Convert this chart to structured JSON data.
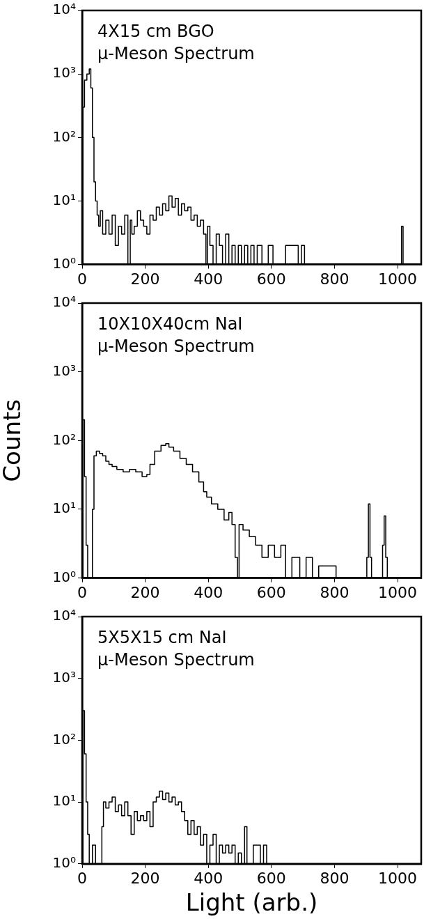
{
  "chart_data": [
    {
      "type": "step",
      "title": "4X15 cm BGO",
      "subtitle": "μ-Meson Spectrum",
      "color": "#000000",
      "log": "y",
      "xlim": [
        0,
        1075
      ],
      "xticks": [
        0,
        200,
        400,
        600,
        800,
        1000
      ],
      "ylim": [
        1,
        10000
      ],
      "yticks": [
        {
          "value": 1,
          "label": "10⁰"
        },
        {
          "value": 10,
          "label": "10¹"
        },
        {
          "value": 100,
          "label": "10²"
        },
        {
          "value": 1000,
          "label": "10³"
        },
        {
          "value": 10000,
          "label": "10⁴"
        }
      ],
      "x": [
        0,
        5,
        10,
        20,
        25,
        30,
        35,
        40,
        45,
        50,
        55,
        60,
        70,
        80,
        90,
        100,
        110,
        120,
        130,
        140,
        150,
        155,
        160,
        170,
        180,
        190,
        200,
        210,
        220,
        230,
        240,
        250,
        260,
        270,
        280,
        290,
        300,
        310,
        320,
        330,
        340,
        350,
        360,
        370,
        380,
        390,
        395,
        400,
        410,
        420,
        430,
        440,
        450,
        460,
        470,
        480,
        490,
        500,
        510,
        520,
        530,
        540,
        550,
        560,
        580,
        600,
        610,
        680,
        690,
        700,
        710,
        1010,
        1015,
        1020
      ],
      "values": [
        1,
        300,
        800,
        1000,
        1200,
        600,
        100,
        20,
        10,
        6,
        4,
        7,
        3,
        5,
        3,
        6,
        2,
        4,
        3,
        6,
        1,
        5,
        3,
        4,
        7,
        5,
        4,
        3,
        6,
        5,
        8,
        6,
        9,
        7,
        12,
        8,
        11,
        6,
        9,
        7,
        8,
        5,
        6,
        4,
        5,
        3,
        1,
        4,
        2,
        1,
        3,
        2,
        1,
        3,
        1,
        2,
        1,
        2,
        1,
        2,
        1,
        2,
        1,
        2,
        1,
        2,
        1,
        2,
        1,
        2,
        1,
        1,
        4,
        1
      ]
    },
    {
      "type": "step",
      "title": "10X10X40cm NaI",
      "subtitle": "μ-Meson Spectrum",
      "ylabel": "Counts",
      "color": "#000000",
      "log": "y",
      "xlim": [
        0,
        1075
      ],
      "xticks": [
        0,
        200,
        400,
        600,
        800,
        1000
      ],
      "ylim": [
        1,
        10000
      ],
      "yticks": [
        {
          "value": 1,
          "label": "10⁰"
        },
        {
          "value": 10,
          "label": "10¹"
        },
        {
          "value": 100,
          "label": "10²"
        },
        {
          "value": 1000,
          "label": "10³"
        },
        {
          "value": 10000,
          "label": "10⁴"
        }
      ],
      "x": [
        0,
        5,
        10,
        15,
        20,
        30,
        35,
        40,
        50,
        60,
        70,
        80,
        90,
        100,
        120,
        140,
        160,
        180,
        200,
        210,
        220,
        240,
        260,
        270,
        280,
        300,
        320,
        340,
        360,
        380,
        390,
        400,
        420,
        440,
        460,
        470,
        480,
        490,
        495,
        500,
        520,
        540,
        560,
        580,
        600,
        620,
        640,
        650,
        680,
        700,
        720,
        740,
        760,
        800,
        810,
        900,
        905,
        910,
        915,
        920,
        950,
        955,
        960,
        965,
        970
      ],
      "values": [
        1,
        200,
        30,
        3,
        1,
        1,
        10,
        60,
        70,
        65,
        60,
        50,
        45,
        42,
        38,
        35,
        38,
        35,
        30,
        32,
        45,
        70,
        85,
        90,
        80,
        70,
        55,
        45,
        35,
        25,
        18,
        15,
        12,
        10,
        7,
        9,
        6,
        2,
        1,
        6,
        5,
        4,
        3,
        2,
        3,
        2,
        3,
        1,
        2,
        1,
        2,
        1,
        1.5,
        1.5,
        1,
        1,
        2,
        12,
        2,
        1,
        1,
        3,
        8,
        2,
        1
      ]
    },
    {
      "type": "step",
      "title": "5X5X15 cm NaI",
      "subtitle": "μ-Meson Spectrum",
      "xlabel": "Light (arb.)",
      "color": "#000000",
      "log": "y",
      "xlim": [
        0,
        1075
      ],
      "xticks": [
        0,
        200,
        400,
        600,
        800,
        1000
      ],
      "ylim": [
        1,
        10000
      ],
      "yticks": [
        {
          "value": 1,
          "label": "10⁰"
        },
        {
          "value": 10,
          "label": "10¹"
        },
        {
          "value": 100,
          "label": "10²"
        },
        {
          "value": 1000,
          "label": "10³"
        },
        {
          "value": 10000,
          "label": "10⁴"
        }
      ],
      "x": [
        0,
        5,
        10,
        15,
        20,
        25,
        40,
        45,
        60,
        65,
        70,
        80,
        90,
        100,
        110,
        120,
        130,
        140,
        150,
        160,
        170,
        180,
        190,
        200,
        210,
        220,
        230,
        240,
        250,
        260,
        270,
        280,
        290,
        300,
        310,
        320,
        330,
        340,
        350,
        360,
        370,
        380,
        390,
        400,
        410,
        420,
        430,
        440,
        450,
        460,
        470,
        480,
        490,
        500,
        510,
        520,
        525,
        560,
        570,
        580,
        590,
        600
      ],
      "values": [
        1,
        300,
        60,
        10,
        3,
        1,
        2,
        1,
        1,
        4,
        10,
        8,
        10,
        12,
        7,
        9,
        6,
        10,
        6,
        3,
        7,
        5,
        6,
        5,
        7,
        4,
        10,
        12,
        15,
        11,
        14,
        10,
        12,
        9,
        10,
        7,
        5,
        3,
        5,
        3,
        4,
        2,
        3,
        1,
        2,
        3,
        1,
        2,
        1.5,
        2,
        1.5,
        2,
        1,
        1.5,
        1,
        4,
        1,
        2,
        1,
        2,
        1,
        1
      ]
    }
  ]
}
